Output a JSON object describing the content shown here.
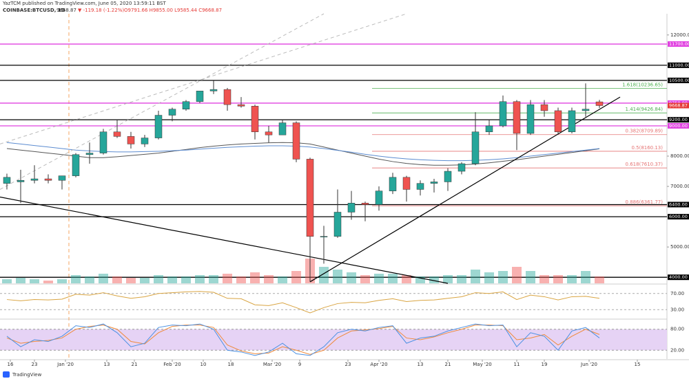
{
  "chart_data": {
    "type": "candlestick",
    "title": "YazTCM published on TradingView.com, June 05, 2020 13:59:11 BST",
    "symbol": "COINBASE:BTCUSD, 1D",
    "last": "9668.87",
    "change": "▼ -119.18 (-1.22%)",
    "ohlc": "O9791.66 H9855.00 L9585.44 C9668.87",
    "footer": "TradingView",
    "xlim": [
      -2,
      191.6
    ],
    "ylim": [
      3800,
      12700
    ],
    "log_scale": false,
    "grid": false,
    "up_color": "#26a69a",
    "down_color": "#ef5350",
    "xticks": [
      {
        "value": 1,
        "label": "16"
      },
      {
        "value": 8,
        "label": "23"
      },
      {
        "value": 17,
        "label": "Jan '20"
      },
      {
        "value": 29,
        "label": "13"
      },
      {
        "value": 37,
        "label": "21"
      },
      {
        "value": 48,
        "label": "Feb '20"
      },
      {
        "value": 57,
        "label": "10"
      },
      {
        "value": 65,
        "label": "18"
      },
      {
        "value": 77,
        "label": "Mar '20"
      },
      {
        "value": 85,
        "label": "9"
      },
      {
        "value": 99,
        "label": "23"
      },
      {
        "value": 108,
        "label": "Apr '20"
      },
      {
        "value": 120,
        "label": "13"
      },
      {
        "value": 128,
        "label": "21"
      },
      {
        "value": 138,
        "label": "May '20"
      },
      {
        "value": 148,
        "label": "11"
      },
      {
        "value": 156,
        "label": "19"
      },
      {
        "value": 169,
        "label": "Jun '20"
      },
      {
        "value": 183,
        "label": "15"
      }
    ],
    "yticks": [
      {
        "value": 4000,
        "label": "4000.00"
      },
      {
        "value": 5000,
        "label": "5000.00"
      },
      {
        "value": 7000,
        "label": "7000.00"
      },
      {
        "value": 8000,
        "label": "8000.00"
      },
      {
        "value": 12000,
        "label": "12000.00"
      }
    ],
    "candles": {
      "x": [
        0,
        4,
        8,
        12,
        16,
        20,
        24,
        28,
        32,
        36,
        40,
        44,
        48,
        52,
        56,
        60,
        64,
        68,
        72,
        76,
        80,
        84,
        88,
        92,
        96,
        100,
        104,
        108,
        112,
        116,
        120,
        124,
        128,
        132,
        136,
        140,
        144,
        148,
        152,
        156,
        160,
        164,
        168,
        172
      ],
      "open": [
        7100,
        7150,
        7200,
        7250,
        7200,
        7350,
        8050,
        8100,
        8800,
        8650,
        8400,
        8600,
        9350,
        9550,
        9800,
        10150,
        10200,
        9700,
        9650,
        8800,
        8700,
        9100,
        7900,
        5350,
        5350,
        6150,
        6450,
        6400,
        6850,
        7300,
        6900,
        7100,
        7150,
        7500,
        7750,
        8800,
        9000,
        9800,
        8750,
        9700,
        9500,
        8800,
        9500,
        9791.66
      ],
      "high": [
        7420,
        7550,
        7700,
        7400,
        7350,
        8100,
        8450,
        8900,
        9200,
        8800,
        8700,
        9500,
        9600,
        9850,
        10150,
        10500,
        10250,
        9950,
        9700,
        9000,
        9200,
        9150,
        7950,
        5700,
        6900,
        6850,
        6500,
        7000,
        7450,
        7350,
        7200,
        7250,
        7600,
        7800,
        9450,
        9200,
        10000,
        9850,
        9850,
        9850,
        9600,
        9600,
        10400,
        9855
      ],
      "low": [
        6900,
        6450,
        7100,
        7100,
        6900,
        7300,
        7750,
        8050,
        8600,
        8250,
        8300,
        8550,
        9150,
        9500,
        9750,
        10050,
        9500,
        9600,
        8550,
        8450,
        8700,
        7800,
        3850,
        4450,
        5300,
        5900,
        5850,
        6200,
        6750,
        6500,
        6700,
        6800,
        6850,
        7400,
        7700,
        8700,
        8950,
        8200,
        8700,
        9300,
        8700,
        8750,
        9300,
        9585.44
      ],
      "close": [
        7300,
        7200,
        7250,
        7200,
        7350,
        8050,
        8100,
        8800,
        8650,
        8400,
        8600,
        9350,
        9550,
        9800,
        10150,
        10200,
        9700,
        9650,
        8800,
        8700,
        9100,
        7900,
        5350,
        5350,
        6150,
        6450,
        6400,
        6850,
        7300,
        6900,
        7100,
        7150,
        7500,
        7750,
        8800,
        9000,
        9800,
        8750,
        9700,
        9500,
        8800,
        9500,
        9550,
        9668.87
      ]
    },
    "volume": {
      "ylim": [
        0,
        20
      ],
      "values": [
        3,
        4,
        3,
        2,
        3,
        6,
        5,
        7,
        5,
        4,
        4,
        6,
        5,
        5,
        6,
        6,
        7,
        5,
        8,
        6,
        5,
        9,
        18,
        12,
        10,
        8,
        6,
        7,
        7,
        6,
        5,
        5,
        6,
        6,
        10,
        8,
        9,
        12,
        9,
        6,
        6,
        6,
        9,
        5
      ]
    },
    "overlays": [
      {
        "color": "#555555",
        "values": [
          8250,
          8200,
          8150,
          8100,
          8050,
          8000,
          7950,
          7950,
          7980,
          8020,
          8060,
          8100,
          8160,
          8220,
          8280,
          8330,
          8370,
          8400,
          8420,
          8440,
          8450,
          8440,
          8400,
          8300,
          8200,
          8100,
          8000,
          7900,
          7820,
          7760,
          7720,
          7700,
          7700,
          7710,
          7740,
          7780,
          7830,
          7880,
          7940,
          8000,
          8060,
          8120,
          8180,
          8240
        ]
      },
      {
        "color": "#5b8bd0",
        "values": [
          8450,
          8400,
          8350,
          8300,
          8250,
          8200,
          8170,
          8150,
          8140,
          8140,
          8150,
          8160,
          8180,
          8200,
          8230,
          8260,
          8290,
          8310,
          8330,
          8340,
          8340,
          8330,
          8300,
          8250,
          8190,
          8130,
          8060,
          8000,
          7950,
          7910,
          7880,
          7860,
          7850,
          7850,
          7860,
          7880,
          7910,
          7950,
          8000,
          8050,
          8100,
          8150,
          8200,
          8250
        ]
      }
    ],
    "levels": [
      {
        "value": 11700,
        "label": "11700.00",
        "color": "#e040e0"
      },
      {
        "value": 11000,
        "label": "11000.00",
        "color": "#000000"
      },
      {
        "value": 10500,
        "label": "10500.00",
        "color": "#000000"
      },
      {
        "value": 9750,
        "label": "9750.00",
        "color": "#e040e0"
      },
      {
        "value": 9200,
        "label": "9200.00",
        "color": "#000000"
      },
      {
        "value": 9000,
        "label": "9000.00",
        "color": "#e040e0"
      },
      {
        "value": 6400,
        "label": "6400.00",
        "color": "#000000"
      },
      {
        "value": 6000,
        "label": "6000.00",
        "color": "#000000"
      },
      {
        "value": 4000,
        "label": "4000.00",
        "color": "#000000"
      }
    ],
    "fib_levels": [
      {
        "value": 10236.65,
        "label": "1.618(10236.65)",
        "color": "#4caf50"
      },
      {
        "value": 9426.84,
        "label": "1.414(9426.84)",
        "color": "#4caf50"
      },
      {
        "value": 8709.89,
        "label": "0.382(8709.89)",
        "color": "#e57373"
      },
      {
        "value": 8160.13,
        "label": "0.5(8160.13)",
        "color": "#e57373"
      },
      {
        "value": 7610.37,
        "label": "0.618(7610.37)",
        "color": "#e57373"
      },
      {
        "value": 6361.77,
        "label": "0.886(6361.77)",
        "color": "#e57373"
      }
    ],
    "trendlines": [
      {
        "color": "#000000",
        "dashed": false,
        "points": [
          [
            88,
            3850
          ],
          [
            178,
            9950
          ]
        ]
      },
      {
        "color": "#000000",
        "dashed": false,
        "points": [
          [
            -2,
            6650
          ],
          [
            128,
            3800
          ]
        ]
      },
      {
        "color": "#bbbbbb",
        "dashed": true,
        "points": [
          [
            -2,
            8400
          ],
          [
            116,
            12700
          ]
        ]
      },
      {
        "color": "#bbbbbb",
        "dashed": true,
        "points": [
          [
            -2,
            6900
          ],
          [
            92,
            12700
          ]
        ]
      }
    ],
    "rsi": {
      "color": "#d9a441",
      "ylim": [
        10,
        90
      ],
      "yticks": [
        {
          "value": 70,
          "label": "70.00"
        },
        {
          "value": 30,
          "label": "30.00"
        }
      ],
      "values": [
        55,
        52,
        55,
        54,
        56,
        68,
        66,
        72,
        64,
        58,
        62,
        70,
        72,
        74,
        75,
        73,
        58,
        57,
        42,
        40,
        47,
        35,
        22,
        35,
        45,
        48,
        47,
        53,
        57,
        50,
        53,
        54,
        58,
        62,
        72,
        70,
        74,
        55,
        66,
        62,
        54,
        62,
        63,
        58
      ]
    },
    "stoch": {
      "band_color": "#e6d3f5",
      "ylim": [
        -5,
        105
      ],
      "yticks": [
        {
          "value": 80,
          "label": "80.00"
        },
        {
          "value": 20,
          "label": "20.00"
        }
      ],
      "k": {
        "color": "#4a90e2",
        "values": [
          60,
          30,
          50,
          45,
          60,
          90,
          85,
          95,
          70,
          30,
          40,
          85,
          92,
          90,
          95,
          80,
          20,
          15,
          5,
          15,
          40,
          10,
          5,
          30,
          70,
          80,
          75,
          85,
          90,
          40,
          55,
          60,
          75,
          85,
          95,
          90,
          92,
          30,
          70,
          60,
          20,
          75,
          85,
          55
        ]
      },
      "d": {
        "color": "#ef8a3a",
        "values": [
          55,
          40,
          45,
          48,
          55,
          80,
          88,
          92,
          80,
          45,
          38,
          70,
          88,
          92,
          92,
          85,
          35,
          18,
          10,
          12,
          30,
          20,
          8,
          20,
          55,
          75,
          78,
          82,
          88,
          55,
          50,
          58,
          70,
          80,
          92,
          92,
          90,
          50,
          55,
          65,
          35,
          60,
          80,
          65
        ]
      }
    }
  }
}
